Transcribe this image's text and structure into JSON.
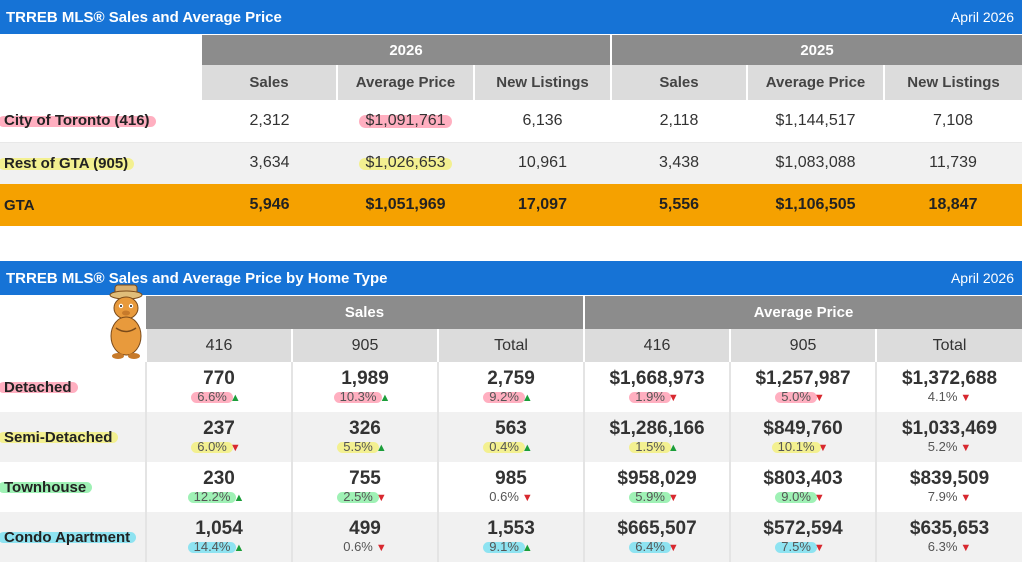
{
  "colors": {
    "header_blue": "#1673d6",
    "group_gray": "#8c8c8c",
    "sub_gray": "#dcdcdc",
    "total_orange": "#f5a100",
    "up_green": "#1b9e3a",
    "down_red": "#d8282f"
  },
  "table1": {
    "title": "TRREB MLS® Sales and Average Price",
    "date": "April 2026",
    "groups": [
      "2026",
      "2025"
    ],
    "columns": [
      "Sales",
      "Average Price",
      "New Listings",
      "Sales",
      "Average Price",
      "New Listings"
    ],
    "rows": [
      {
        "label": "City of Toronto (416)",
        "cells": [
          "2,312",
          "$1,091,761",
          "6,136",
          "2,118",
          "$1,144,517",
          "7,108"
        ]
      },
      {
        "label": "Rest of GTA (905)",
        "cells": [
          "3,634",
          "$1,026,653",
          "10,961",
          "3,438",
          "$1,083,088",
          "11,739"
        ]
      },
      {
        "label": "GTA",
        "cells": [
          "5,946",
          "$1,051,969",
          "17,097",
          "5,556",
          "$1,106,505",
          "18,847"
        ]
      }
    ]
  },
  "table2": {
    "title": "TRREB MLS® Sales and Average Price by Home Type",
    "date": "April 2026",
    "groups": [
      "Sales",
      "Average Price"
    ],
    "columns": [
      "416",
      "905",
      "Total",
      "416",
      "905",
      "Total"
    ],
    "rows": [
      {
        "label": "Detached",
        "cells": [
          {
            "v": "770",
            "p": "6.6%",
            "dir": "up"
          },
          {
            "v": "1,989",
            "p": "10.3%",
            "dir": "up"
          },
          {
            "v": "2,759",
            "p": "9.2%",
            "dir": "up"
          },
          {
            "v": "$1,668,973",
            "p": "1.9%",
            "dir": "down"
          },
          {
            "v": "$1,257,987",
            "p": "5.0%",
            "dir": "down"
          },
          {
            "v": "$1,372,688",
            "p": "4.1%",
            "dir": "down"
          }
        ]
      },
      {
        "label": "Semi-Detached",
        "cells": [
          {
            "v": "237",
            "p": "6.0%",
            "dir": "down"
          },
          {
            "v": "326",
            "p": "5.5%",
            "dir": "up"
          },
          {
            "v": "563",
            "p": "0.4%",
            "dir": "up"
          },
          {
            "v": "$1,286,166",
            "p": "1.5%",
            "dir": "up"
          },
          {
            "v": "$849,760",
            "p": "10.1%",
            "dir": "down"
          },
          {
            "v": "$1,033,469",
            "p": "5.2%",
            "dir": "down"
          }
        ]
      },
      {
        "label": "Townhouse",
        "cells": [
          {
            "v": "230",
            "p": "12.2%",
            "dir": "up"
          },
          {
            "v": "755",
            "p": "2.5%",
            "dir": "down"
          },
          {
            "v": "985",
            "p": "0.6%",
            "dir": "down"
          },
          {
            "v": "$958,029",
            "p": "5.9%",
            "dir": "down"
          },
          {
            "v": "$803,403",
            "p": "9.0%",
            "dir": "down"
          },
          {
            "v": "$839,509",
            "p": "7.9%",
            "dir": "down"
          }
        ]
      },
      {
        "label": "Condo Apartment",
        "cells": [
          {
            "v": "1,054",
            "p": "14.4%",
            "dir": "up"
          },
          {
            "v": "499",
            "p": "0.6%",
            "dir": "down"
          },
          {
            "v": "1,553",
            "p": "9.1%",
            "dir": "up"
          },
          {
            "v": "$665,507",
            "p": "6.4%",
            "dir": "down"
          },
          {
            "v": "$572,594",
            "p": "7.5%",
            "dir": "down"
          },
          {
            "v": "$635,653",
            "p": "6.3%",
            "dir": "down"
          }
        ]
      }
    ]
  },
  "icons": {
    "up": "up-arrow-icon",
    "down": "down-arrow-icon",
    "mascot": "groundhog-mascot-icon"
  }
}
